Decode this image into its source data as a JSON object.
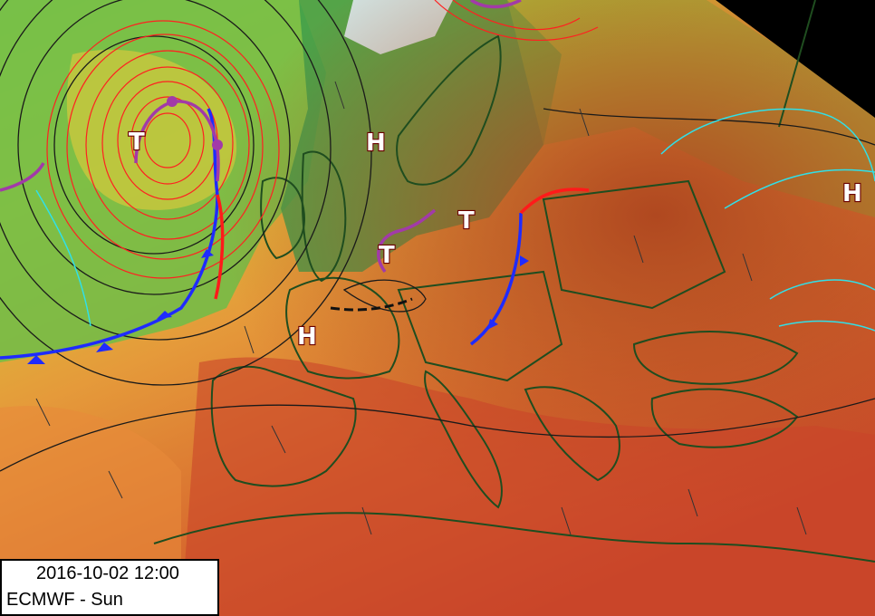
{
  "map": {
    "valid_time": "2016-10-02 12:00",
    "model_label": "ECMWF - Sun",
    "pressure_centers": [
      {
        "label": "T",
        "type": "low"
      },
      {
        "label": "T",
        "type": "low"
      },
      {
        "label": "T",
        "type": "low"
      },
      {
        "label": "H",
        "type": "high"
      },
      {
        "label": "H",
        "type": "high"
      },
      {
        "label": "H",
        "type": "high"
      }
    ],
    "fronts": [
      {
        "kind": "cold",
        "color": "#1f2bff"
      },
      {
        "kind": "warm",
        "color": "#ff1a1a"
      },
      {
        "kind": "occluded",
        "color": "#a23aa8"
      }
    ],
    "colors": {
      "hot": "#c8421e",
      "warm": "#e07a35",
      "mild": "#e6b23a",
      "cool": "#9ccf3a",
      "cold": "#3aa64a",
      "coldest": "#d8e8e8",
      "land_border": "#1f4d1f",
      "isobar": "#1a1a1a",
      "isotherm_red": "#ff2020",
      "isotherm_cyan": "#30e0e8"
    }
  }
}
